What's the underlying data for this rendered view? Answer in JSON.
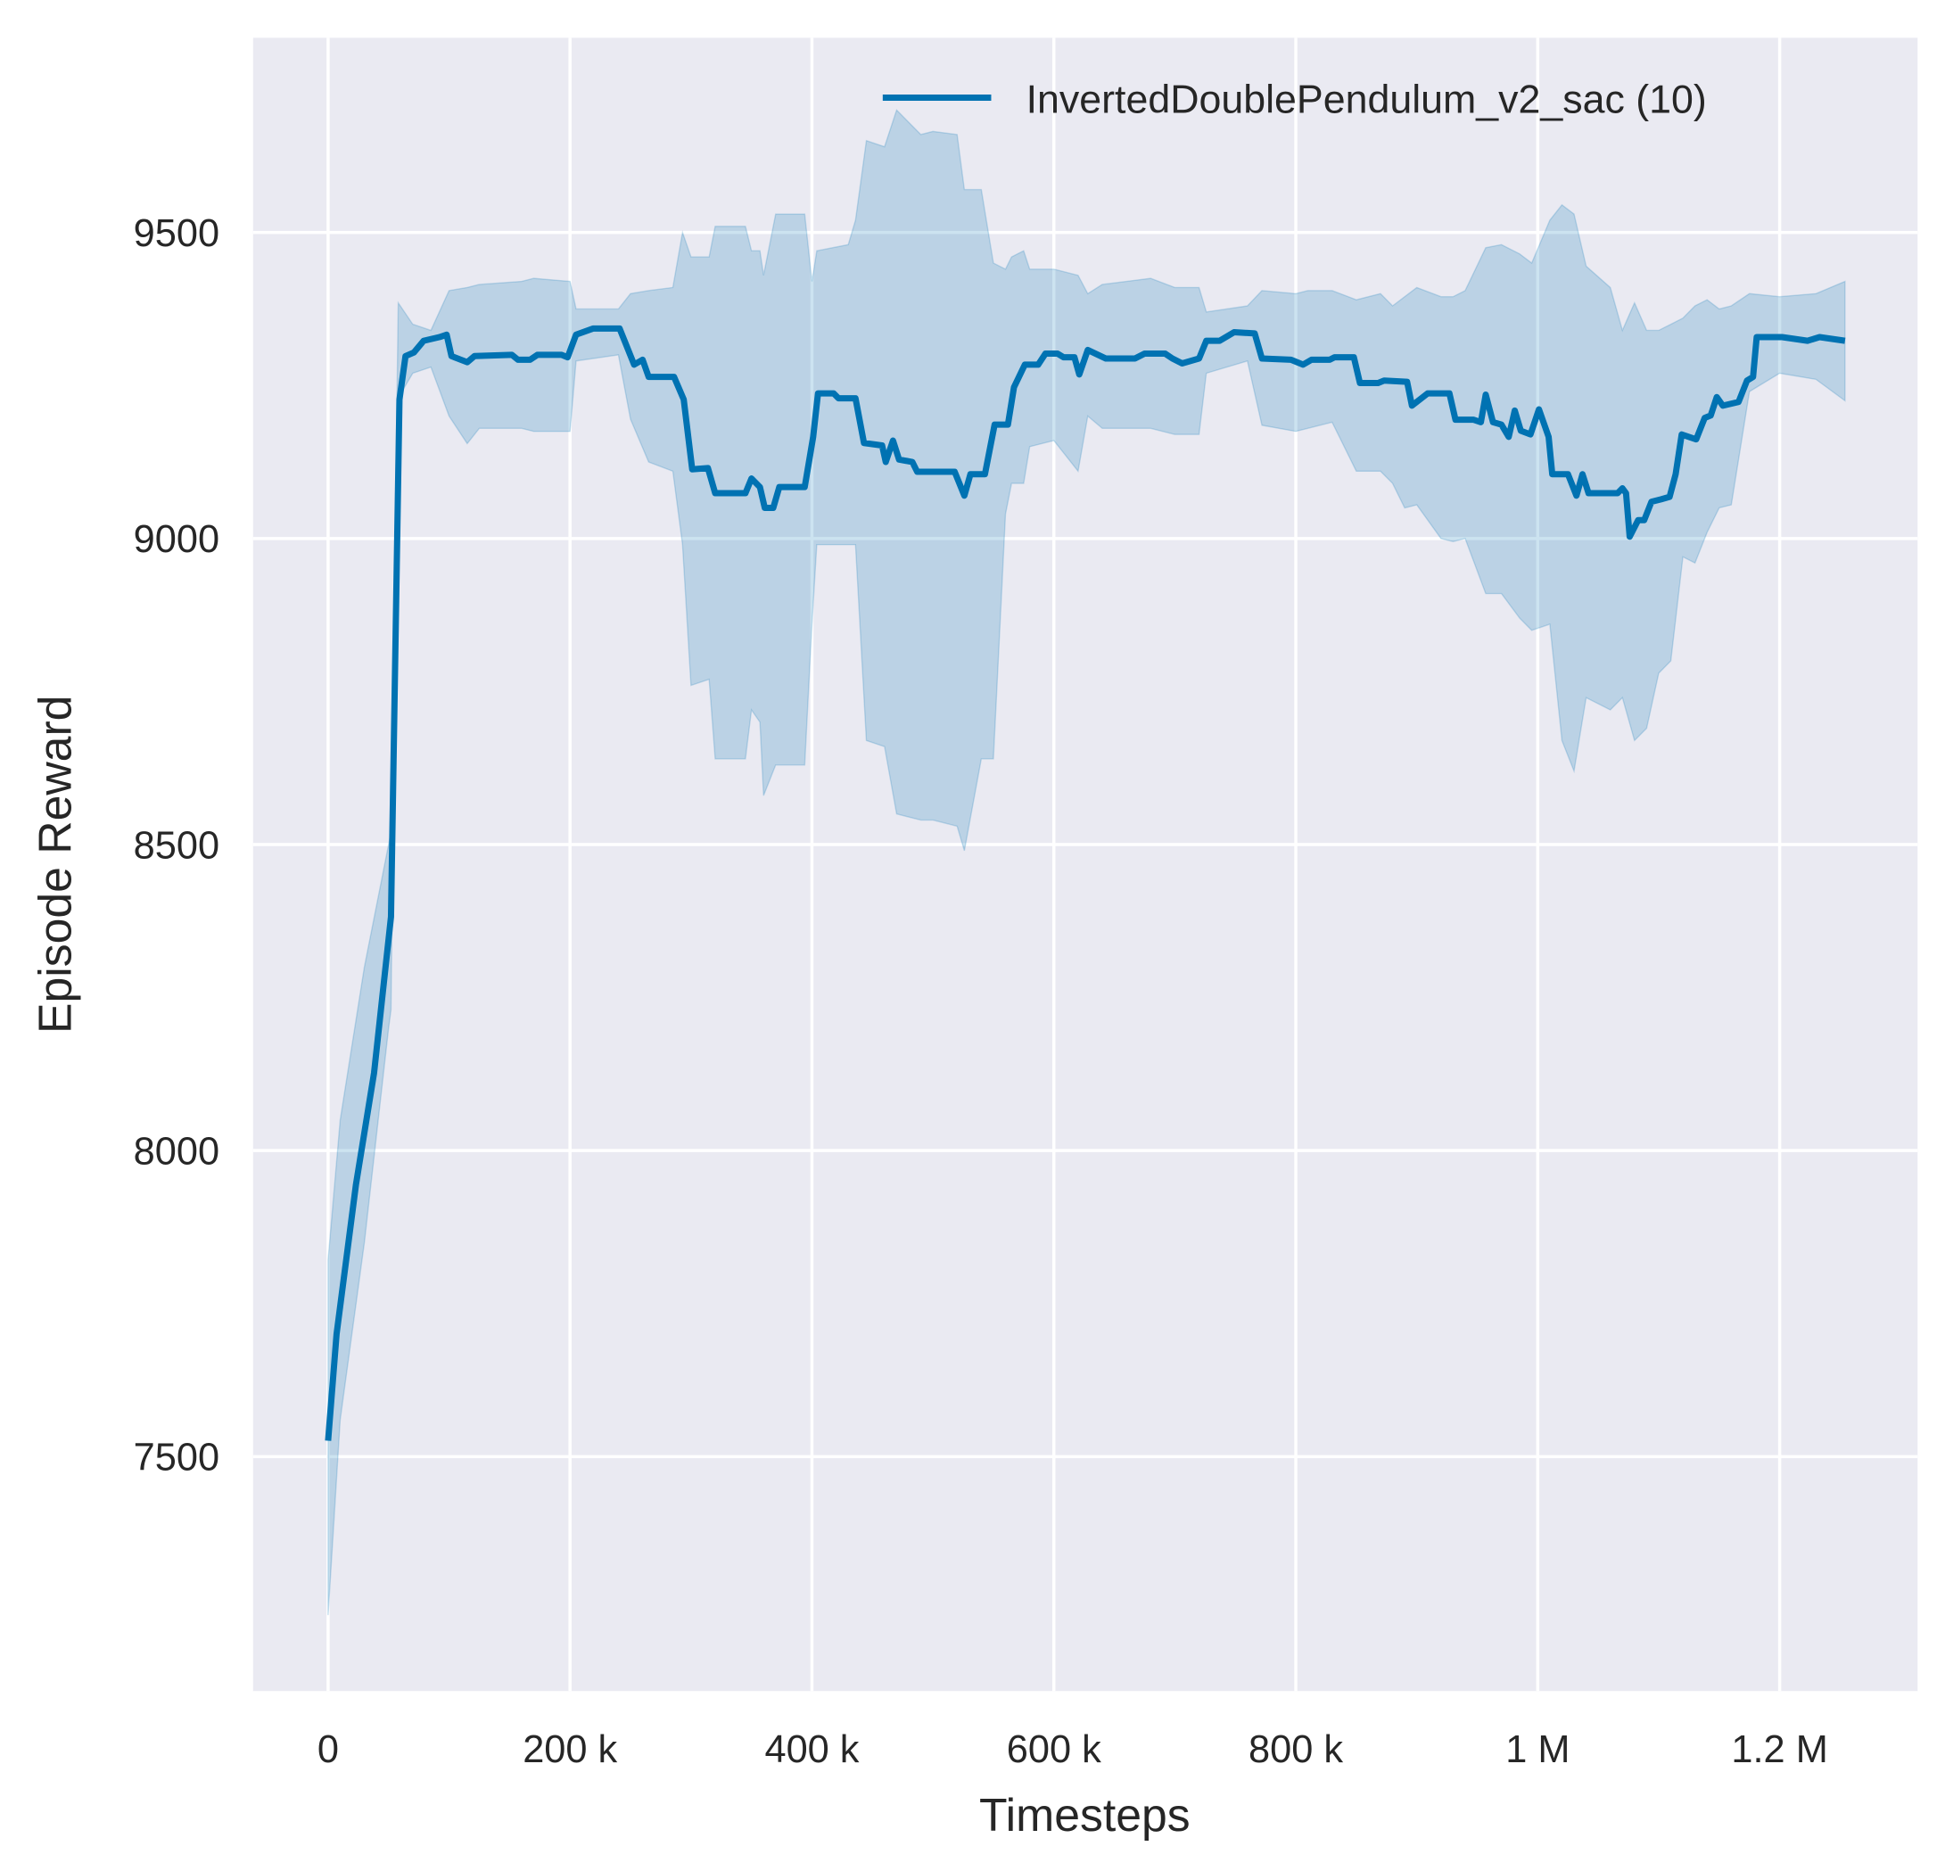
{
  "chart_data": {
    "type": "line",
    "title": "",
    "xlabel": "Timesteps",
    "ylabel": "Episode Reward",
    "xlim": [
      -62000,
      1314000
    ],
    "ylim": [
      7117,
      9818
    ],
    "grid": true,
    "legend_position": "top-right",
    "background_color": "#EAEAF2",
    "grid_color": "#FFFFFF",
    "x_ticks": [
      {
        "value": 0,
        "label": "0"
      },
      {
        "value": 200000,
        "label": "200 k"
      },
      {
        "value": 400000,
        "label": "400 k"
      },
      {
        "value": 600000,
        "label": "600 k"
      },
      {
        "value": 800000,
        "label": "800 k"
      },
      {
        "value": 1000000,
        "label": "1 M"
      },
      {
        "value": 1200000,
        "label": "1.2 M"
      }
    ],
    "y_ticks": [
      {
        "value": 7500,
        "label": "7500"
      },
      {
        "value": 8000,
        "label": "8000"
      },
      {
        "value": 8500,
        "label": "8500"
      },
      {
        "value": 9000,
        "label": "9000"
      },
      {
        "value": 9500,
        "label": "9500"
      }
    ],
    "series": [
      {
        "name": "InvertedDoublePendulum_v2_sac (10)",
        "color": "#0072B2",
        "band_color": "#0072B2",
        "mean": [
          [
            0,
            7526
          ],
          [
            7000,
            7700
          ],
          [
            23000,
            7944
          ],
          [
            38000,
            8127
          ],
          [
            52000,
            8382
          ],
          [
            59000,
            9227
          ],
          [
            64000,
            9298
          ],
          [
            71000,
            9304
          ],
          [
            79000,
            9323
          ],
          [
            92000,
            9329
          ],
          [
            98000,
            9333
          ],
          [
            102000,
            9298
          ],
          [
            115000,
            9288
          ],
          [
            121000,
            9298
          ],
          [
            152000,
            9300
          ],
          [
            157000,
            9292
          ],
          [
            167000,
            9292
          ],
          [
            173000,
            9300
          ],
          [
            193000,
            9300
          ],
          [
            198000,
            9296
          ],
          [
            205000,
            9333
          ],
          [
            219000,
            9343
          ],
          [
            241000,
            9343
          ],
          [
            253000,
            9284
          ],
          [
            260000,
            9292
          ],
          [
            265000,
            9264
          ],
          [
            286000,
            9264
          ],
          [
            294000,
            9227
          ],
          [
            301000,
            9113
          ],
          [
            314000,
            9115
          ],
          [
            320000,
            9074
          ],
          [
            345000,
            9074
          ],
          [
            350000,
            9098
          ],
          [
            357000,
            9084
          ],
          [
            361000,
            9050
          ],
          [
            368000,
            9050
          ],
          [
            373000,
            9084
          ],
          [
            394000,
            9084
          ],
          [
            401000,
            9166
          ],
          [
            405000,
            9237
          ],
          [
            418000,
            9237
          ],
          [
            422000,
            9229
          ],
          [
            436000,
            9229
          ],
          [
            443000,
            9156
          ],
          [
            458000,
            9152
          ],
          [
            461000,
            9125
          ],
          [
            467000,
            9160
          ],
          [
            472000,
            9129
          ],
          [
            483000,
            9125
          ],
          [
            487000,
            9109
          ],
          [
            518000,
            9109
          ],
          [
            526000,
            9070
          ],
          [
            531000,
            9105
          ],
          [
            543000,
            9105
          ],
          [
            551000,
            9186
          ],
          [
            562000,
            9186
          ],
          [
            567000,
            9247
          ],
          [
            576000,
            9284
          ],
          [
            587000,
            9284
          ],
          [
            593000,
            9302
          ],
          [
            603000,
            9302
          ],
          [
            608000,
            9296
          ],
          [
            617000,
            9296
          ],
          [
            621000,
            9268
          ],
          [
            628000,
            9308
          ],
          [
            643000,
            9294
          ],
          [
            667000,
            9294
          ],
          [
            675000,
            9302
          ],
          [
            692000,
            9302
          ],
          [
            698000,
            9294
          ],
          [
            706000,
            9286
          ],
          [
            720000,
            9294
          ],
          [
            726000,
            9323
          ],
          [
            737000,
            9323
          ],
          [
            749000,
            9337
          ],
          [
            766000,
            9335
          ],
          [
            772000,
            9294
          ],
          [
            796000,
            9292
          ],
          [
            806000,
            9284
          ],
          [
            813000,
            9292
          ],
          [
            828000,
            9292
          ],
          [
            832000,
            9296
          ],
          [
            848000,
            9296
          ],
          [
            853000,
            9254
          ],
          [
            868000,
            9254
          ],
          [
            873000,
            9258
          ],
          [
            892000,
            9256
          ],
          [
            896000,
            9217
          ],
          [
            909000,
            9237
          ],
          [
            927000,
            9237
          ],
          [
            932000,
            9194
          ],
          [
            947000,
            9194
          ],
          [
            953000,
            9190
          ],
          [
            957000,
            9235
          ],
          [
            963000,
            9190
          ],
          [
            970000,
            9186
          ],
          [
            976000,
            9166
          ],
          [
            981000,
            9209
          ],
          [
            986000,
            9176
          ],
          [
            994000,
            9170
          ],
          [
            1001000,
            9211
          ],
          [
            1009000,
            9166
          ],
          [
            1012000,
            9105
          ],
          [
            1025000,
            9105
          ],
          [
            1032000,
            9070
          ],
          [
            1037000,
            9105
          ],
          [
            1042000,
            9074
          ],
          [
            1066000,
            9074
          ],
          [
            1070000,
            9082
          ],
          [
            1073000,
            9074
          ],
          [
            1076000,
            9003
          ],
          [
            1083000,
            9030
          ],
          [
            1088000,
            9030
          ],
          [
            1094000,
            9060
          ],
          [
            1102000,
            9064
          ],
          [
            1109000,
            9068
          ],
          [
            1114000,
            9105
          ],
          [
            1119000,
            9170
          ],
          [
            1131000,
            9162
          ],
          [
            1138000,
            9197
          ],
          [
            1143000,
            9201
          ],
          [
            1148000,
            9231
          ],
          [
            1153000,
            9217
          ],
          [
            1166000,
            9223
          ],
          [
            1173000,
            9258
          ],
          [
            1178000,
            9264
          ],
          [
            1181000,
            9329
          ],
          [
            1202000,
            9329
          ],
          [
            1223000,
            9323
          ],
          [
            1233000,
            9329
          ],
          [
            1254000,
            9323
          ]
        ],
        "band": [
          [
            0,
            7822,
            7241
          ],
          [
            10000,
            8050,
            7560
          ],
          [
            30000,
            8300,
            7850
          ],
          [
            50000,
            8500,
            8200
          ],
          [
            52000,
            8520,
            8230
          ],
          [
            58000,
            9385,
            9230
          ],
          [
            70000,
            9350,
            9270
          ],
          [
            85000,
            9340,
            9280
          ],
          [
            100000,
            9405,
            9200
          ],
          [
            115000,
            9410,
            9155
          ],
          [
            125000,
            9415,
            9180
          ],
          [
            160000,
            9420,
            9180
          ],
          [
            170000,
            9425,
            9175
          ],
          [
            200000,
            9420,
            9175
          ],
          [
            205000,
            9375,
            9290
          ],
          [
            240000,
            9375,
            9300
          ],
          [
            250000,
            9400,
            9195
          ],
          [
            265000,
            9405,
            9125
          ],
          [
            285000,
            9410,
            9110
          ],
          [
            293000,
            9500,
            8990
          ],
          [
            300000,
            9460,
            8760
          ],
          [
            315000,
            9460,
            8770
          ],
          [
            320000,
            9510,
            8640
          ],
          [
            345000,
            9510,
            8640
          ],
          [
            350000,
            9470,
            8720
          ],
          [
            357000,
            9470,
            8700
          ],
          [
            360000,
            9430,
            8580
          ],
          [
            370000,
            9530,
            8630
          ],
          [
            394000,
            9530,
            8630
          ],
          [
            400000,
            9420,
            8860
          ],
          [
            404000,
            9470,
            8990
          ],
          [
            430000,
            9480,
            8990
          ],
          [
            436000,
            9520,
            8990
          ],
          [
            445000,
            9650,
            8670
          ],
          [
            460000,
            9640,
            8660
          ],
          [
            470000,
            9700,
            8550
          ],
          [
            490000,
            9660,
            8540
          ],
          [
            500000,
            9665,
            8540
          ],
          [
            520000,
            9660,
            8530
          ],
          [
            526000,
            9570,
            8490
          ],
          [
            540000,
            9570,
            8640
          ],
          [
            550000,
            9450,
            8640
          ],
          [
            560000,
            9440,
            9040
          ],
          [
            565000,
            9460,
            9090
          ],
          [
            575000,
            9470,
            9090
          ],
          [
            580000,
            9440,
            9150
          ],
          [
            600000,
            9440,
            9160
          ],
          [
            620000,
            9430,
            9110
          ],
          [
            628000,
            9400,
            9200
          ],
          [
            640000,
            9415,
            9180
          ],
          [
            680000,
            9425,
            9180
          ],
          [
            700000,
            9410,
            9170
          ],
          [
            720000,
            9410,
            9170
          ],
          [
            726000,
            9370,
            9270
          ],
          [
            760000,
            9380,
            9290
          ],
          [
            772000,
            9405,
            9185
          ],
          [
            800000,
            9400,
            9175
          ],
          [
            810000,
            9405,
            9180
          ],
          [
            830000,
            9405,
            9190
          ],
          [
            850000,
            9390,
            9110
          ],
          [
            870000,
            9400,
            9110
          ],
          [
            880000,
            9380,
            9090
          ],
          [
            890000,
            9395,
            9050
          ],
          [
            900000,
            9410,
            9055
          ],
          [
            920000,
            9395,
            9000
          ],
          [
            930000,
            9395,
            8995
          ],
          [
            940000,
            9405,
            9000
          ],
          [
            957000,
            9475,
            8910
          ],
          [
            970000,
            9480,
            8910
          ],
          [
            985000,
            9465,
            8870
          ],
          [
            995000,
            9450,
            8850
          ],
          [
            1010000,
            9520,
            8860
          ],
          [
            1020000,
            9545,
            8670
          ],
          [
            1030000,
            9530,
            8620
          ],
          [
            1040000,
            9445,
            8740
          ],
          [
            1060000,
            9410,
            8720
          ],
          [
            1070000,
            9340,
            8740
          ],
          [
            1080000,
            9385,
            8670
          ],
          [
            1090000,
            9340,
            8690
          ],
          [
            1100000,
            9340,
            8780
          ],
          [
            1110000,
            9350,
            8800
          ],
          [
            1120000,
            9360,
            8970
          ],
          [
            1130000,
            9380,
            8960
          ],
          [
            1140000,
            9390,
            9010
          ],
          [
            1150000,
            9375,
            9050
          ],
          [
            1160000,
            9380,
            9055
          ],
          [
            1175000,
            9400,
            9240
          ],
          [
            1200000,
            9395,
            9270
          ],
          [
            1230000,
            9400,
            9260
          ],
          [
            1254000,
            9420,
            9225
          ]
        ]
      }
    ]
  }
}
